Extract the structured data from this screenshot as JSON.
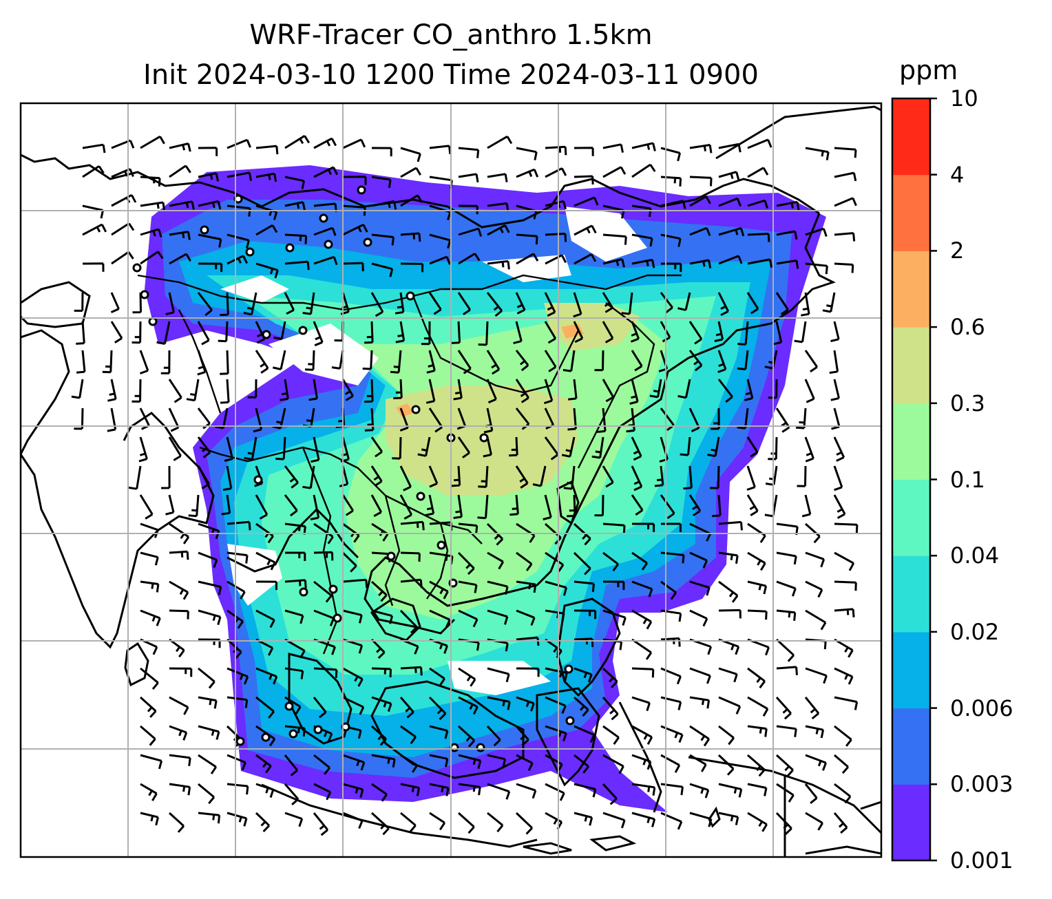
{
  "title_line1": "WRF-Tracer CO_anthro 1.5km",
  "title_line2": "Init 2024-03-10 1200 Time 2024-03-11 0900",
  "colorbar": {
    "unit": "ppm",
    "levels": [
      "0.001",
      "0.003",
      "0.006",
      "0.02",
      "0.04",
      "0.1",
      "0.3",
      "0.6",
      "2",
      "4",
      "10"
    ],
    "colors": [
      "#6a2cff",
      "#3472f3",
      "#06b0e8",
      "#2ce0d8",
      "#5ff7c1",
      "#9cfa9c",
      "#cfe28a",
      "#fdaf61",
      "#ff713f",
      "#ff2a17"
    ]
  },
  "map": {
    "gridlines": true,
    "features": [
      "coastlines",
      "country-borders",
      "wind-barbs",
      "station-markers"
    ]
  }
}
